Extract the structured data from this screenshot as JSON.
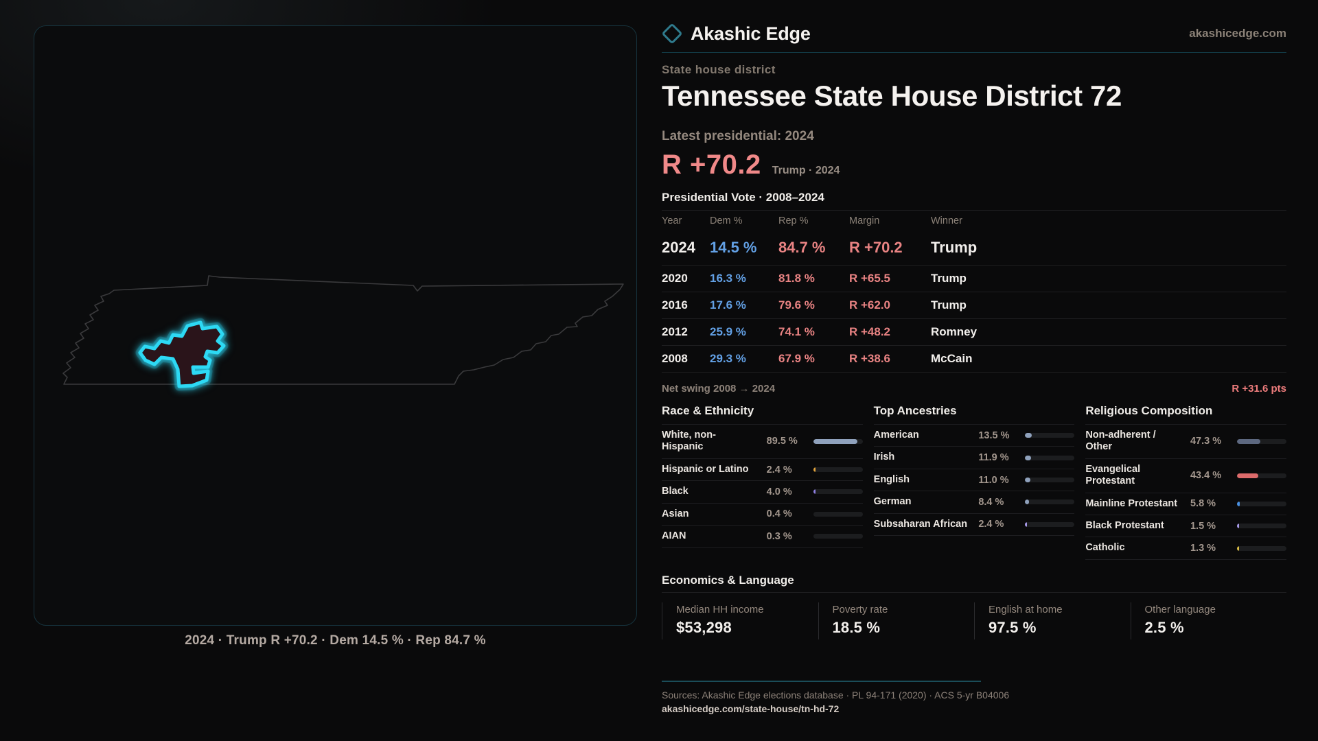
{
  "brand": {
    "name": "Akashic Edge",
    "site": "akashicedge.com"
  },
  "map": {
    "caption": "2024 · Trump R +70.2 · Dem 14.5 % · Rep 84.7 %",
    "state": "Tennessee",
    "district_color": "#2dd9f4"
  },
  "header": {
    "eyebrow": "State house district",
    "title": "Tennessee State House District 72",
    "latest_label": "Latest presidential: 2024",
    "hero_margin": "R +70.2",
    "hero_sub": "Trump · 2024"
  },
  "vote_table": {
    "title": "Presidential Vote · 2008–2024",
    "columns": [
      "Year",
      "Dem %",
      "Rep %",
      "Margin",
      "Winner"
    ],
    "rows": [
      {
        "year": "2024",
        "dem": "14.5 %",
        "rep": "84.7 %",
        "margin": "R +70.2",
        "winner": "Trump",
        "big": true
      },
      {
        "year": "2020",
        "dem": "16.3 %",
        "rep": "81.8 %",
        "margin": "R +65.5",
        "winner": "Trump",
        "big": false
      },
      {
        "year": "2016",
        "dem": "17.6 %",
        "rep": "79.6 %",
        "margin": "R +62.0",
        "winner": "Trump",
        "big": false
      },
      {
        "year": "2012",
        "dem": "25.9 %",
        "rep": "74.1 %",
        "margin": "R +48.2",
        "winner": "Romney",
        "big": false
      },
      {
        "year": "2008",
        "dem": "29.3 %",
        "rep": "67.9 %",
        "margin": "R +38.6",
        "winner": "McCain",
        "big": false
      }
    ]
  },
  "net_swing": {
    "label": "Net swing 2008 → 2024",
    "value": "R +31.6 pts"
  },
  "demographics": {
    "columns": [
      {
        "title": "Race & Ethnicity",
        "rows": [
          {
            "label": "White, non-\nHispanic",
            "value": "89.5 %",
            "pct": 89.5,
            "color": "#8fa1bc"
          },
          {
            "label": "Hispanic or Latino",
            "value": "2.4 %",
            "pct": 2.4,
            "color": "#e3a43c"
          },
          {
            "label": "Black",
            "value": "4.0 %",
            "pct": 4.0,
            "color": "#8d7ee0"
          },
          {
            "label": "Asian",
            "value": "0.4 %",
            "pct": 0.4,
            "color": "#8fa1bc"
          },
          {
            "label": "AIAN",
            "value": "0.3 %",
            "pct": 0.3,
            "color": "#8fa1bc"
          }
        ]
      },
      {
        "title": "Top Ancestries",
        "rows": [
          {
            "label": "American",
            "value": "13.5 %",
            "pct": 13.5,
            "color": "#8fa1bc"
          },
          {
            "label": "Irish",
            "value": "11.9 %",
            "pct": 11.9,
            "color": "#8fa1bc"
          },
          {
            "label": "English",
            "value": "11.0 %",
            "pct": 11.0,
            "color": "#8fa1bc"
          },
          {
            "label": "German",
            "value": "8.4 %",
            "pct": 8.4,
            "color": "#8fa1bc"
          },
          {
            "label": "Subsaharan African",
            "value": "2.4 %",
            "pct": 2.4,
            "color": "#a79ae8"
          }
        ]
      },
      {
        "title": "Religious Composition",
        "rows": [
          {
            "label": "Non-adherent /\nOther",
            "value": "47.3 %",
            "pct": 47.3,
            "color": "#5d6880"
          },
          {
            "label": "Evangelical\nProtestant",
            "value": "43.4 %",
            "pct": 43.4,
            "color": "#dd6b6b"
          },
          {
            "label": "Mainline Protestant",
            "value": "5.8 %",
            "pct": 5.8,
            "color": "#4a90e2"
          },
          {
            "label": "Black Protestant",
            "value": "1.5 %",
            "pct": 1.5,
            "color": "#a79ae8"
          },
          {
            "label": "Catholic",
            "value": "1.3 %",
            "pct": 1.3,
            "color": "#d9bc45"
          }
        ]
      }
    ]
  },
  "economics": {
    "title": "Economics & Language",
    "stats": [
      {
        "label": "Median HH income",
        "value": "$53,298"
      },
      {
        "label": "Poverty rate",
        "value": "18.5 %"
      },
      {
        "label": "English at home",
        "value": "97.5 %"
      },
      {
        "label": "Other language",
        "value": "2.5 %"
      }
    ]
  },
  "footer": {
    "sources": "Sources: Akashic Edge elections database · PL 94-171 (2020) · ACS 5-yr B04006",
    "link": "akashicedge.com/state-house/tn-hd-72"
  }
}
